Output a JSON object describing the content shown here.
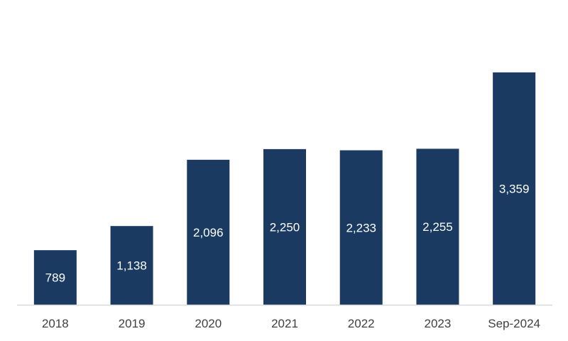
{
  "chart_data": {
    "type": "bar",
    "title": "",
    "xlabel": "",
    "ylabel": "",
    "categories": [
      "2018",
      "2019",
      "2020",
      "2021",
      "2022",
      "2023",
      "Sep-2024"
    ],
    "values": [
      789,
      1138,
      2096,
      2250,
      2233,
      2255,
      3359
    ],
    "data_labels": [
      "789",
      "1,138",
      "2,096",
      "2,250",
      "2,233",
      "2,255",
      "3,359"
    ],
    "ylim": [
      0,
      4200
    ],
    "grid": false,
    "legend": "none",
    "bar_color": "#1a3a61",
    "label_color": "#ffffff",
    "axis_color": "#d9d9d9"
  }
}
